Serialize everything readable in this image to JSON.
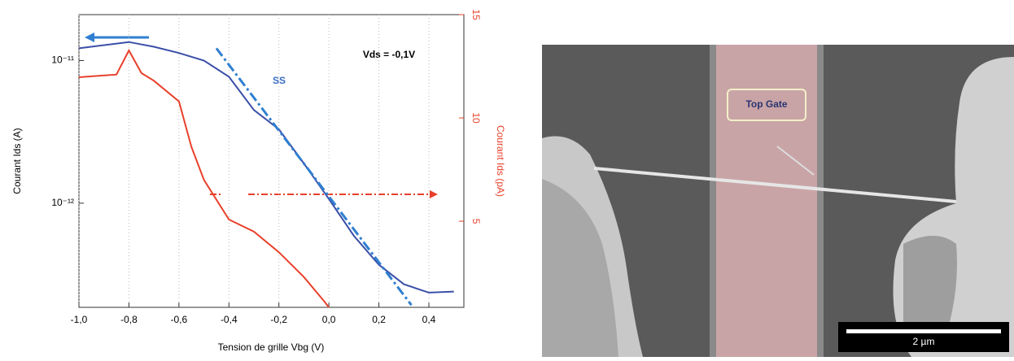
{
  "chart_data": {
    "type": "line",
    "xlabel": "Tension de grille Vbg (V)",
    "ylabel": "Courant Ids (A)",
    "y2label": "Courant Ids (pA)",
    "annotations": [
      "Vds = -0,1V",
      "SS"
    ],
    "xlim": [
      -1.0,
      0.54
    ],
    "xticks": [
      {
        "value": -1.0,
        "label": "-1,0"
      },
      {
        "value": -0.8,
        "label": "-0,8"
      },
      {
        "value": -0.6,
        "label": "-0,6"
      },
      {
        "value": -0.4,
        "label": "-0,4"
      },
      {
        "value": -0.2,
        "label": "-0,2"
      },
      {
        "value": 0.0,
        "label": "0,0"
      },
      {
        "value": 0.2,
        "label": "0,2"
      },
      {
        "value": 0.4,
        "label": "0,4"
      }
    ],
    "ylim": [
      1.86e-13,
      2.1e-11
    ],
    "log_y": true,
    "yticks": [
      {
        "value": 1e-11,
        "label": "10⁻¹¹"
      },
      {
        "value": 1e-12,
        "label": "10⁻¹²"
      }
    ],
    "y2lim": [
      0.83,
      15
    ],
    "y2ticks": [
      5,
      10,
      15
    ],
    "grid": true,
    "series": [
      {
        "color": "#3a4fa8",
        "x": [
          -1.0,
          -0.8,
          -0.7,
          -0.6,
          -0.5,
          -0.4,
          -0.3,
          -0.2,
          -0.1,
          0.0,
          0.1,
          0.2,
          0.3,
          0.4,
          0.5
        ],
        "values": [
          1.22e-11,
          1.35e-11,
          1.25e-11,
          1.13e-11,
          1e-11,
          7.7e-12,
          4.5e-12,
          3.3e-12,
          1.9e-12,
          1.07e-12,
          5.9e-13,
          3.7e-13,
          2.7e-13,
          2.36e-13,
          2.4e-13
        ]
      },
      {
        "color": "#e8402a",
        "axis": "y2",
        "x": [
          -1.0,
          -0.85,
          -0.8,
          -0.75,
          -0.7,
          -0.6,
          -0.55,
          -0.5,
          -0.4,
          -0.3,
          -0.2,
          -0.1,
          -0.02,
          0.0
        ],
        "values": [
          11.97,
          12.1,
          13.27,
          12.17,
          11.8,
          10.8,
          8.6,
          7.0,
          5.08,
          4.5,
          3.5,
          2.3,
          1.14,
          0.83
        ]
      },
      {
        "color": "#2f7fd0",
        "dash": true,
        "x": [
          -0.45,
          0.33
        ],
        "values": [
          1.22e-11,
          1.93e-13
        ]
      }
    ]
  },
  "image": {
    "label": "Top Gate",
    "scale_bar": "2 µm"
  }
}
